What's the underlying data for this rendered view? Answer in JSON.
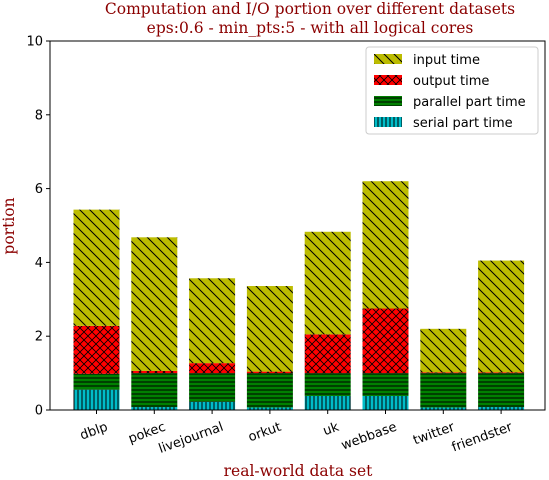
{
  "chart_data": {
    "type": "bar",
    "stacked": true,
    "title_line1": "Computation and I/O portion over different datasets",
    "title_line2": "eps:0.6 - min_pts:5 - with all logical cores",
    "xlabel": "real-world data set",
    "ylabel": "portion",
    "ylim": [
      0,
      10
    ],
    "yticks": [
      0,
      2,
      4,
      6,
      8,
      10
    ],
    "categories": [
      "dblp",
      "pokec",
      "livejournal",
      "orkut",
      "uk",
      "webbase",
      "twitter",
      "friendster"
    ],
    "series": [
      {
        "name": "serial part time",
        "color": "#00bcc8",
        "pattern": "vertical",
        "values": [
          0.55,
          0.08,
          0.22,
          0.07,
          0.38,
          0.38,
          0.07,
          0.08
        ]
      },
      {
        "name": "parallel part time",
        "color": "#008000",
        "pattern": "horizontal",
        "values": [
          0.43,
          0.92,
          0.78,
          0.93,
          0.62,
          0.62,
          0.93,
          0.92
        ]
      },
      {
        "name": "output time",
        "color": "#ff0000",
        "pattern": "cross",
        "values": [
          1.3,
          0.06,
          0.27,
          0.04,
          1.05,
          1.75,
          0.02,
          0.02
        ]
      },
      {
        "name": "input time",
        "color": "#bcbc00",
        "pattern": "diag",
        "values": [
          3.15,
          3.62,
          2.3,
          2.32,
          2.78,
          3.45,
          1.18,
          3.03
        ]
      }
    ],
    "legend_order": [
      "input time",
      "output time",
      "parallel part time",
      "serial part time"
    ],
    "legend_position": "upper-right",
    "grid": false
  }
}
